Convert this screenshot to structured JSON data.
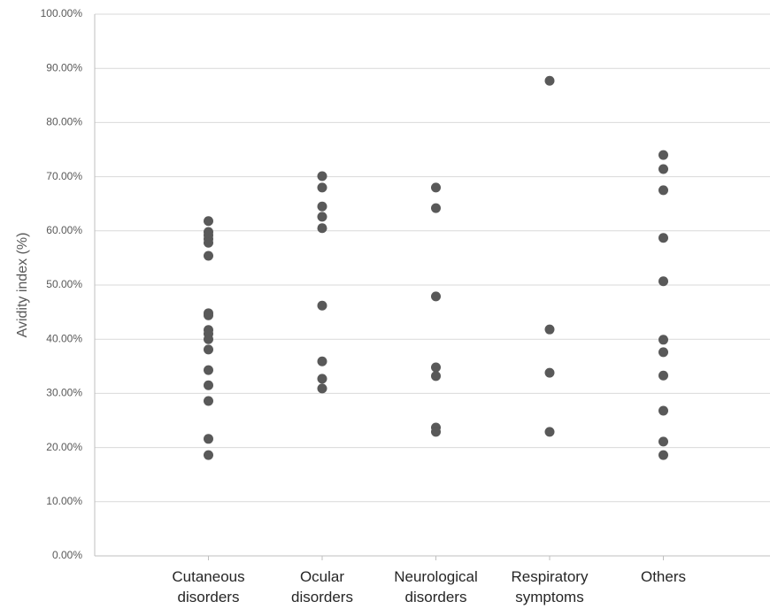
{
  "chart_data": {
    "type": "scatter",
    "y_label": "Avidity index (%)",
    "categories": [
      "Cutaneous disorders",
      "Ocular disorders",
      "Neurological disorders",
      "Respiratory symptoms",
      "Others"
    ],
    "values": [
      [
        61.8,
        59.8,
        59.2,
        58.5,
        57.8,
        55.4,
        44.8,
        44.4,
        41.7,
        41.0,
        40.0,
        38.1,
        34.3,
        31.5,
        28.6,
        21.6,
        18.6
      ],
      [
        70.1,
        68.0,
        64.5,
        62.6,
        60.5,
        46.2,
        35.9,
        32.7,
        30.9
      ],
      [
        68.0,
        64.2,
        47.9,
        34.8,
        33.2,
        23.7,
        22.9
      ],
      [
        87.7,
        41.8,
        33.8,
        22.9
      ],
      [
        74.0,
        71.4,
        67.5,
        58.7,
        50.7,
        39.9,
        37.6,
        33.3,
        26.8,
        21.1,
        18.6
      ]
    ],
    "color": "#595959",
    "ylim": [
      0,
      100
    ],
    "yticks": [
      {
        "value": 0,
        "label": "0.00%"
      },
      {
        "value": 10,
        "label": "10.00%"
      },
      {
        "value": 20,
        "label": "20.00%"
      },
      {
        "value": 30,
        "label": "30.00%"
      },
      {
        "value": 40,
        "label": "40.00%"
      },
      {
        "value": 50,
        "label": "50.00%"
      },
      {
        "value": 60,
        "label": "60.00%"
      },
      {
        "value": 70,
        "label": "70.00%"
      },
      {
        "value": 80,
        "label": "80.00%"
      },
      {
        "value": 90,
        "label": "90.00%"
      },
      {
        "value": 100,
        "label": "100.00%"
      }
    ],
    "grid": true
  }
}
